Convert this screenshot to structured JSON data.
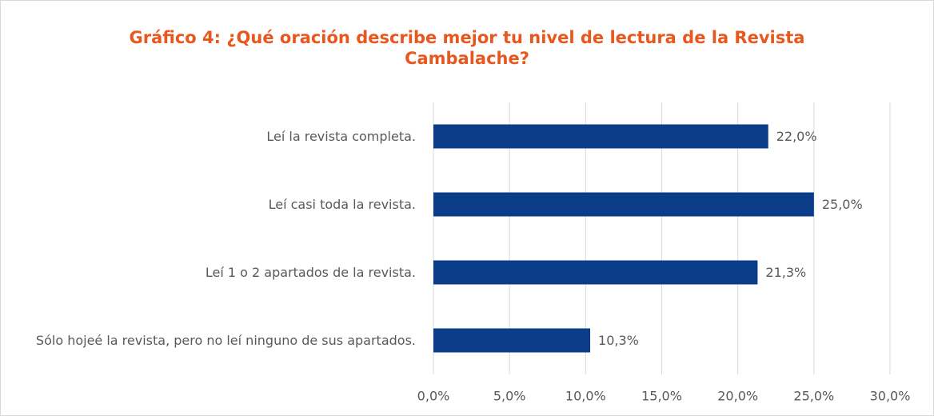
{
  "chart_data": {
    "type": "bar",
    "orientation": "horizontal",
    "title": "Gráfico 4: ¿Qué oración describe mejor tu nivel de lectura de la Revista Cambalache?",
    "categories": [
      "Leí la revista completa.",
      "Leí casi toda la revista.",
      "Leí 1 o 2 apartados de la revista.",
      "Sólo hojeé la revista, pero no leí ninguno de sus apartados."
    ],
    "values": [
      22.0,
      25.0,
      21.3,
      10.3
    ],
    "value_labels": [
      "22,0%",
      "25,0%",
      "21,3%",
      "10,3%"
    ],
    "color": "#0b3c87",
    "xlim": [
      0,
      30
    ],
    "xticks": [
      {
        "value": 0,
        "label": "0,0%"
      },
      {
        "value": 5,
        "label": "5,0%"
      },
      {
        "value": 10,
        "label": "10,0%"
      },
      {
        "value": 15,
        "label": "15,0%"
      },
      {
        "value": 20,
        "label": "20,0%"
      },
      {
        "value": 25,
        "label": "25,0%"
      },
      {
        "value": 30,
        "label": "30,0%"
      }
    ],
    "grid": true
  }
}
